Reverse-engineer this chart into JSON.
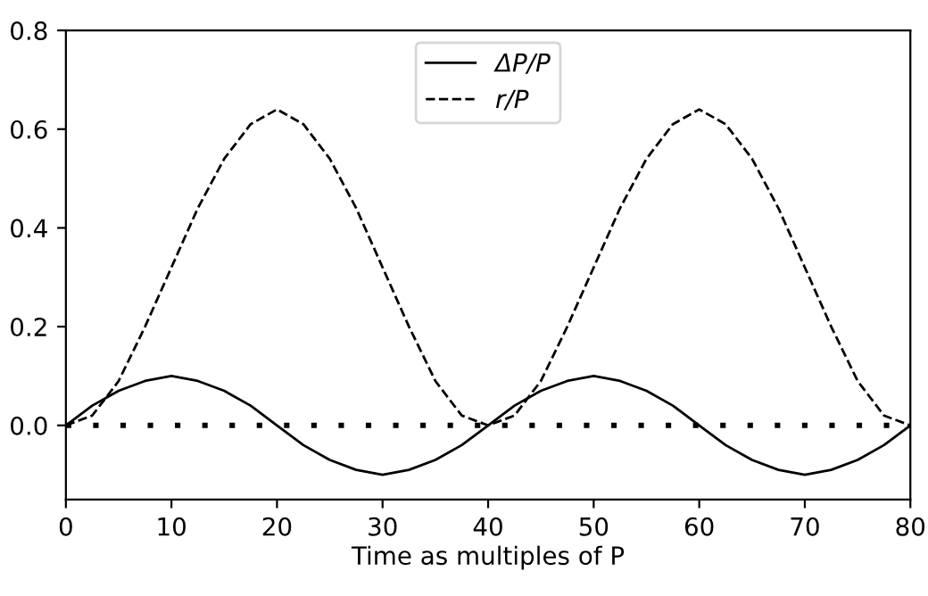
{
  "chart_data": {
    "type": "line",
    "xlabel": "Time as multiples of P",
    "x": [
      0,
      2.5,
      5,
      7.5,
      10,
      12.5,
      15,
      17.5,
      20,
      22.5,
      25,
      27.5,
      30,
      32.5,
      35,
      37.5,
      40,
      42.5,
      45,
      47.5,
      50,
      52.5,
      55,
      57.5,
      60,
      62.5,
      65,
      67.5,
      70,
      72.5,
      75,
      77.5,
      80
    ],
    "series": [
      {
        "name": "ΔP/P",
        "color": "#000000",
        "line_style": "solid",
        "values": [
          0,
          0.04,
          0.07,
          0.09,
          0.1,
          0.09,
          0.07,
          0.04,
          0,
          -0.04,
          -0.07,
          -0.09,
          -0.1,
          -0.09,
          -0.07,
          -0.04,
          0,
          0.04,
          0.07,
          0.09,
          0.1,
          0.09,
          0.07,
          0.04,
          0,
          -0.04,
          -0.07,
          -0.09,
          -0.1,
          -0.09,
          -0.07,
          -0.04,
          0
        ]
      },
      {
        "name": "r/P",
        "color": "#000000",
        "line_style": "dashed",
        "values": [
          0,
          0.02,
          0.09,
          0.2,
          0.32,
          0.44,
          0.54,
          0.61,
          0.64,
          0.61,
          0.54,
          0.44,
          0.32,
          0.2,
          0.09,
          0.02,
          0,
          0.02,
          0.09,
          0.2,
          0.32,
          0.44,
          0.54,
          0.61,
          0.64,
          0.61,
          0.54,
          0.44,
          0.32,
          0.2,
          0.09,
          0.02,
          0
        ]
      }
    ],
    "ref_lines": [
      {
        "axis": "y",
        "value": 0,
        "color": "#000000",
        "line_style": "dotted"
      }
    ],
    "xlim": [
      0,
      80
    ],
    "xticks": [
      0,
      10,
      20,
      30,
      40,
      50,
      60,
      70,
      80
    ],
    "ylim": [
      -0.15,
      0.8
    ],
    "yticks": [
      {
        "value": 0,
        "label": "0.0"
      },
      0.2,
      0.4,
      0.6,
      0.8
    ],
    "grid": false,
    "legend": "top center",
    "marker": "none"
  }
}
